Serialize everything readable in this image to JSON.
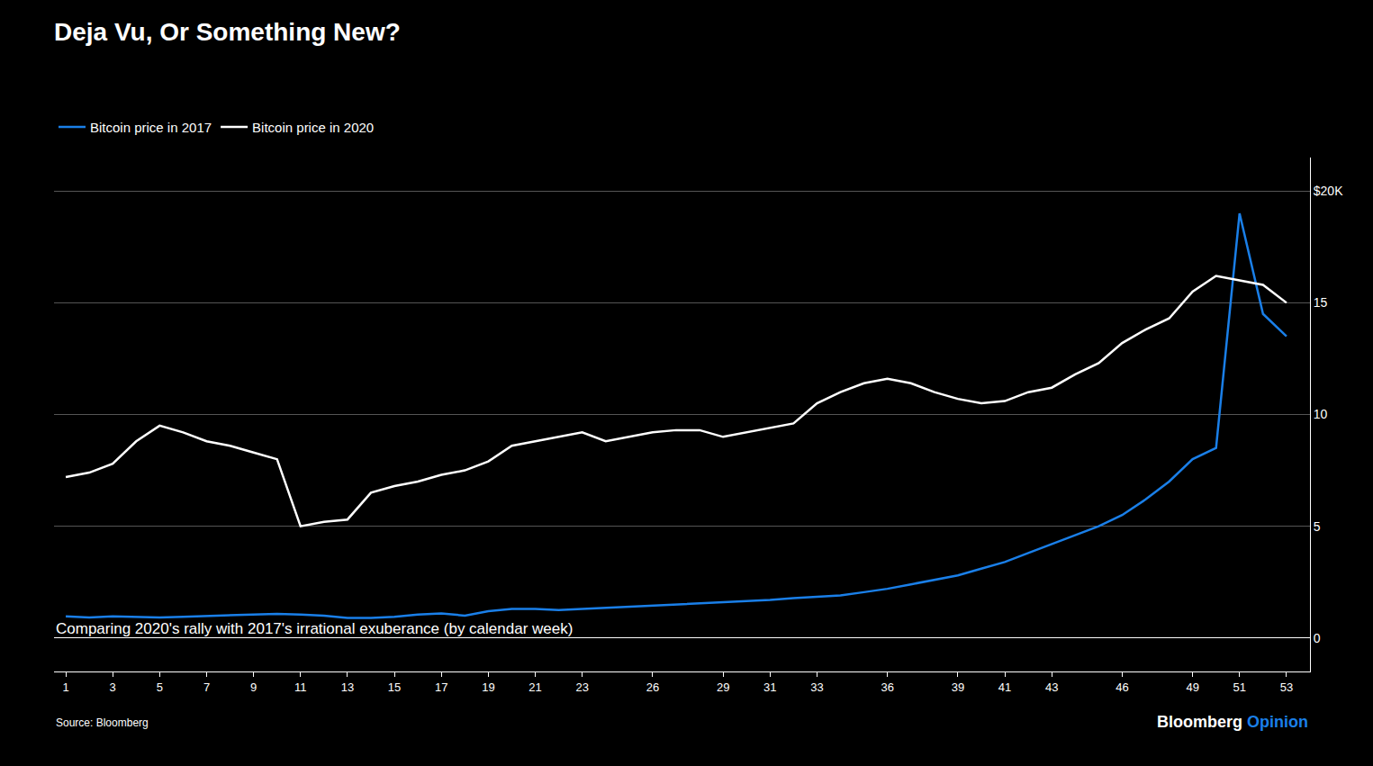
{
  "chart_data": {
    "type": "line",
    "title": "Deja Vu, Or Something New?",
    "subtitle": "Comparing 2020's rally with 2017's irrational exuberance (by calendar week)",
    "source": "Source: Bloomberg",
    "annotations": [
      {
        "text": "Bloomberg",
        "color": "#ffffff"
      },
      {
        "text": "Opinion",
        "color": "#1a7fe8"
      }
    ],
    "x": [
      1,
      2,
      3,
      4,
      5,
      6,
      7,
      8,
      9,
      10,
      11,
      12,
      13,
      14,
      15,
      16,
      17,
      18,
      19,
      20,
      21,
      22,
      23,
      24,
      25,
      26,
      27,
      28,
      29,
      30,
      31,
      32,
      33,
      34,
      35,
      36,
      37,
      38,
      39,
      40,
      41,
      42,
      43,
      44,
      45,
      46,
      47,
      48,
      49,
      50,
      51,
      52,
      53
    ],
    "series": [
      {
        "name": "Bitcoin price in 2017",
        "color": "#1a7fe8",
        "values": [
          0.97,
          0.92,
          0.97,
          0.95,
          0.92,
          0.95,
          0.98,
          1.0,
          1.05,
          1.08,
          1.05,
          1.0,
          0.9,
          0.9,
          0.95,
          1.05,
          1.1,
          1.0,
          1.2,
          1.3,
          1.3,
          1.25,
          1.3,
          1.35,
          1.4,
          1.45,
          1.5,
          1.55,
          1.6,
          1.65,
          1.7,
          1.78,
          1.85,
          1.9,
          2.05,
          2.2,
          2.4,
          2.6,
          2.8,
          3.1,
          3.4,
          3.8,
          4.2,
          4.6,
          5.0,
          5.5,
          6.2,
          7.0,
          8.0,
          8.5,
          19.0,
          14.5,
          13.5
        ]
      },
      {
        "name": "Bitcoin price in 2020",
        "color": "#ffffff",
        "values": [
          7.2,
          7.4,
          7.8,
          8.8,
          9.5,
          9.2,
          8.8,
          8.6,
          8.3,
          8.0,
          5.0,
          5.2,
          5.3,
          6.5,
          6.8,
          7.0,
          7.3,
          7.5,
          7.9,
          8.6,
          8.8,
          9.0,
          9.2,
          8.8,
          9.0,
          9.2,
          9.3,
          9.3,
          9.0,
          9.2,
          9.4,
          9.6,
          10.5,
          11.0,
          11.4,
          11.6,
          11.4,
          11.0,
          10.7,
          10.5,
          10.6,
          11.0,
          11.2,
          11.8,
          12.3,
          13.2,
          13.8,
          14.3,
          15.5,
          16.2,
          16.0,
          15.8,
          15.0
        ]
      }
    ],
    "xlim": [
      0.5,
      54
    ],
    "xticks": [
      1,
      3,
      5,
      7,
      9,
      11,
      13,
      15,
      17,
      19,
      21,
      23,
      26,
      29,
      31,
      33,
      36,
      39,
      41,
      43,
      46,
      49,
      51,
      53
    ],
    "ylim": [
      -1.5,
      21.5
    ],
    "yticks": [
      0,
      5,
      10,
      15,
      {
        "value": 20,
        "label": "$20K"
      }
    ],
    "grid": "y",
    "legend": "top left"
  }
}
